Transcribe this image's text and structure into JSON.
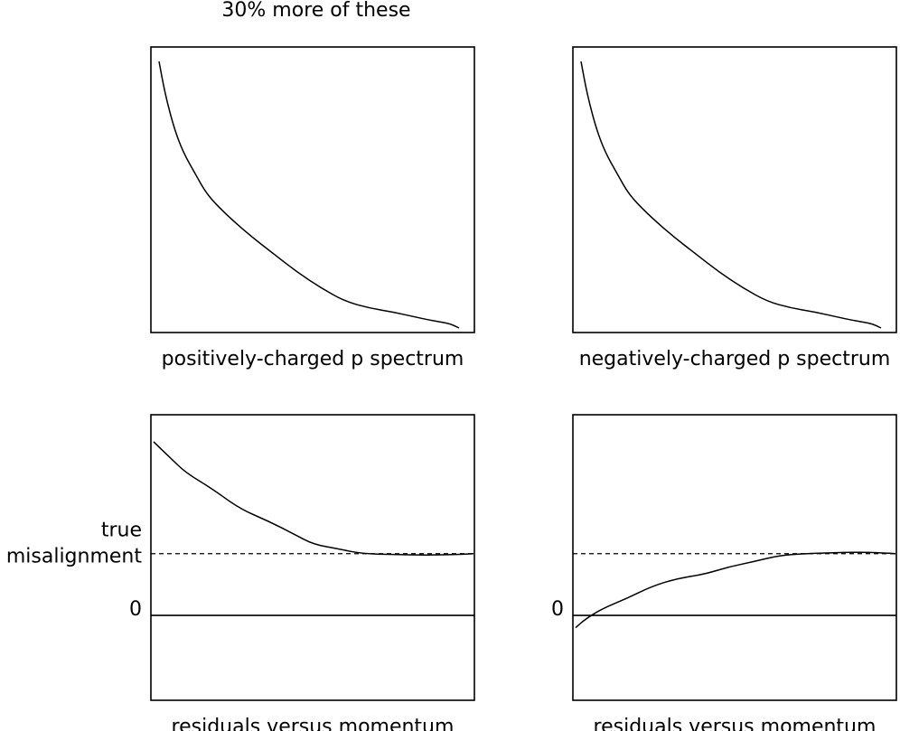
{
  "figure": {
    "annotation": "30% more of these"
  },
  "chart_data": [
    {
      "type": "line",
      "xlabel": "positively-charged p spectrum",
      "ylabel": "",
      "x": [
        0.0,
        0.02,
        0.05,
        0.08,
        0.12,
        0.16,
        0.22,
        0.3,
        0.38,
        0.46,
        0.54,
        0.62,
        0.7,
        0.78,
        0.86,
        0.9,
        0.94,
        0.97,
        1.0
      ],
      "y": [
        1.0,
        0.88,
        0.75,
        0.66,
        0.58,
        0.5,
        0.43,
        0.35,
        0.28,
        0.21,
        0.15,
        0.1,
        0.075,
        0.06,
        0.04,
        0.03,
        0.022,
        0.016,
        0.0
      ],
      "xlim": [
        0,
        1
      ],
      "ylim": [
        0,
        1
      ],
      "reference_lines": []
    },
    {
      "type": "line",
      "xlabel": "negatively-charged p spectrum",
      "ylabel": "",
      "x": [
        0.0,
        0.02,
        0.05,
        0.08,
        0.12,
        0.16,
        0.22,
        0.3,
        0.38,
        0.46,
        0.54,
        0.62,
        0.7,
        0.78,
        0.86,
        0.9,
        0.94,
        0.97,
        1.0
      ],
      "y": [
        1.0,
        0.88,
        0.75,
        0.66,
        0.58,
        0.5,
        0.43,
        0.35,
        0.28,
        0.21,
        0.15,
        0.1,
        0.075,
        0.06,
        0.04,
        0.03,
        0.022,
        0.016,
        0.0
      ],
      "xlim": [
        0,
        1
      ],
      "ylim": [
        0,
        1
      ],
      "reference_lines": []
    },
    {
      "type": "line",
      "xlabel": "residuals versus momentum",
      "ylabel": "",
      "x": [
        0.0,
        0.05,
        0.1,
        0.18,
        0.27,
        0.36,
        0.44,
        0.5,
        0.58,
        0.65,
        0.75,
        0.85,
        0.95,
        1.0
      ],
      "y": [
        2.25,
        2.05,
        1.85,
        1.65,
        1.38,
        1.22,
        1.05,
        0.92,
        0.86,
        0.8,
        0.79,
        0.78,
        0.79,
        0.8
      ],
      "xlim": [
        0,
        1
      ],
      "ylim": [
        -1.1,
        2.6
      ],
      "reference_lines": [
        {
          "value": 0.8,
          "style": "dashed",
          "label": "true misalignment",
          "label_lines": [
            "true",
            "misalignment"
          ]
        },
        {
          "value": 0.0,
          "style": "solid",
          "label": "0"
        }
      ]
    },
    {
      "type": "line",
      "xlabel": "residuals versus momentum",
      "ylabel": "",
      "x": [
        0.0,
        0.03,
        0.08,
        0.16,
        0.24,
        0.32,
        0.4,
        0.48,
        0.56,
        0.64,
        0.72,
        0.8,
        0.88,
        0.96,
        1.0
      ],
      "y": [
        -0.16,
        -0.05,
        0.08,
        0.22,
        0.38,
        0.48,
        0.53,
        0.63,
        0.7,
        0.78,
        0.8,
        0.81,
        0.82,
        0.81,
        0.8
      ],
      "xlim": [
        0,
        1
      ],
      "ylim": [
        -1.1,
        2.6
      ],
      "reference_lines": [
        {
          "value": 0.8,
          "style": "dashed",
          "label": ""
        },
        {
          "value": 0.0,
          "style": "solid",
          "label": "0"
        }
      ]
    }
  ]
}
